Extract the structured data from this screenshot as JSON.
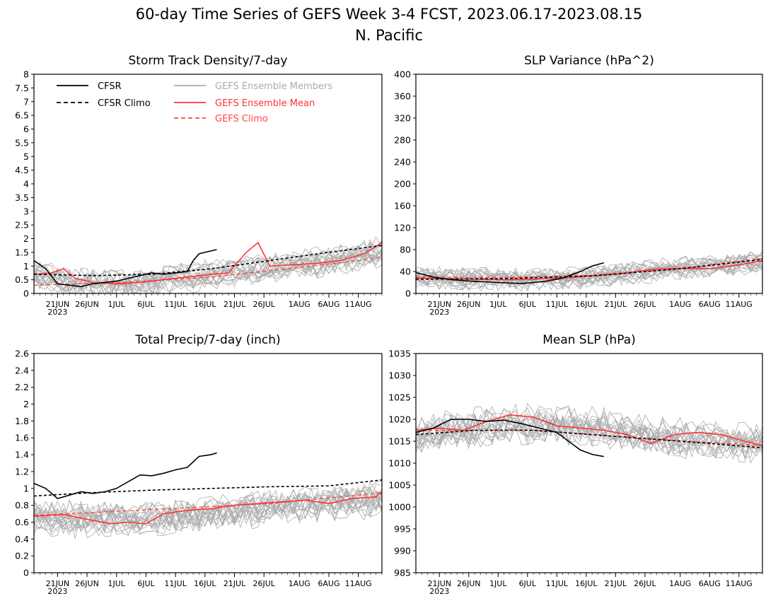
{
  "figure": {
    "title_line1": "60-day Time Series of GEFS Week 3-4 FCST, 2023.06.17-2023.08.15",
    "title_line2": "N. Pacific"
  },
  "colors": {
    "cfsr": "#000000",
    "members": "#aaaaaa",
    "ensemble_mean": "#ff3333",
    "gefs_climo": "#ff4444"
  },
  "legend": {
    "cfsr": "CFSR",
    "cfsr_climo": "CFSR Climo",
    "members": "GEFS Ensemble Members",
    "mean": "GEFS Ensemble Mean",
    "gefs_climo": "GEFS Climo"
  },
  "chart_data": [
    {
      "id": "storm",
      "type": "line",
      "title": "Storm Track Density/7-day",
      "x_dates": {
        "start": "2023-06-17",
        "end": "2023-08-15"
      },
      "x_ticks": [
        "21JUN",
        "26JUN",
        "1JUL",
        "6JUL",
        "11JUL",
        "16JUL",
        "21JUL",
        "26JUL",
        "1AUG",
        "6AUG",
        "11AUG"
      ],
      "x_year": "2023",
      "ylim": [
        0,
        8
      ],
      "y_ticks": [
        "0",
        "0.5",
        "1",
        "1.5",
        "2",
        "2.5",
        "3",
        "3.5",
        "4",
        "4.5",
        "5",
        "5.5",
        "6",
        "6.5",
        "7",
        "7.5",
        "8"
      ],
      "series": [
        {
          "name": "CFSR",
          "x_day": [
            0,
            2,
            4,
            6,
            8,
            10,
            12,
            14,
            16,
            18,
            20,
            22,
            24,
            26,
            27,
            28,
            29,
            30,
            31
          ],
          "values": [
            1.2,
            0.9,
            0.35,
            0.3,
            0.25,
            0.35,
            0.4,
            0.45,
            0.55,
            0.65,
            0.75,
            0.7,
            0.75,
            0.8,
            1.2,
            1.45,
            1.5,
            1.55,
            1.6
          ]
        },
        {
          "name": "CFSR Climo",
          "x_day": [
            0,
            10,
            20,
            30,
            40,
            50,
            59
          ],
          "values": [
            0.7,
            0.65,
            0.7,
            0.9,
            1.2,
            1.5,
            1.75
          ]
        },
        {
          "name": "GEFS Ensemble Mean",
          "x_day": [
            0,
            3,
            5,
            7,
            10,
            14,
            18,
            22,
            26,
            30,
            33,
            36,
            38,
            40,
            44,
            48,
            52,
            56,
            59
          ],
          "values": [
            0.7,
            0.75,
            0.9,
            0.55,
            0.4,
            0.35,
            0.4,
            0.5,
            0.6,
            0.7,
            0.75,
            1.5,
            1.85,
            1.0,
            1.05,
            1.1,
            1.2,
            1.45,
            1.85
          ]
        },
        {
          "name": "GEFS Climo",
          "x_day": [
            0,
            15,
            30,
            45,
            59
          ],
          "values": [
            0.3,
            0.4,
            0.6,
            0.95,
            1.3
          ]
        }
      ],
      "members_mean": [
        0.65,
        0.4,
        0.35,
        0.55,
        0.75,
        0.95,
        1.15,
        1.35,
        1.55
      ],
      "members_day": [
        0,
        8,
        16,
        24,
        32,
        40,
        48,
        54,
        59
      ],
      "members_spread": 0.55
    },
    {
      "id": "slpvar",
      "type": "line",
      "title": "SLP Variance (hPa^2)",
      "x_dates": {
        "start": "2023-06-17",
        "end": "2023-08-15"
      },
      "x_ticks": [
        "21JUN",
        "26JUN",
        "1JUL",
        "6JUL",
        "11JUL",
        "16JUL",
        "21JUL",
        "26JUL",
        "1AUG",
        "6AUG",
        "11AUG"
      ],
      "x_year": "2023",
      "ylim": [
        0,
        400
      ],
      "y_ticks": [
        "0",
        "40",
        "80",
        "120",
        "160",
        "200",
        "240",
        "280",
        "320",
        "360",
        "400"
      ],
      "series": [
        {
          "name": "CFSR",
          "x_day": [
            0,
            3,
            6,
            10,
            14,
            18,
            22,
            25,
            28,
            30,
            32
          ],
          "values": [
            38,
            30,
            25,
            22,
            20,
            18,
            22,
            28,
            40,
            50,
            56
          ]
        },
        {
          "name": "CFSR Climo",
          "x_day": [
            0,
            15,
            30,
            45,
            59
          ],
          "values": [
            26,
            27,
            32,
            45,
            62
          ]
        },
        {
          "name": "GEFS Ensemble Mean",
          "x_day": [
            0,
            5,
            10,
            15,
            20,
            25,
            30,
            35,
            40,
            45,
            50,
            55,
            59
          ],
          "values": [
            28,
            27,
            26,
            25,
            26,
            28,
            32,
            36,
            44,
            46,
            45,
            52,
            60
          ]
        },
        {
          "name": "GEFS Climo",
          "x_day": [
            0,
            15,
            30,
            45,
            59
          ],
          "values": [
            30,
            29,
            33,
            46,
            64
          ]
        }
      ],
      "members_mean": [
        28,
        26,
        24,
        26,
        32,
        40,
        48,
        52,
        56
      ],
      "members_day": [
        0,
        8,
        16,
        24,
        32,
        40,
        48,
        54,
        59
      ],
      "members_spread": 22
    },
    {
      "id": "precip",
      "type": "line",
      "title": "Total Precip/7-day (inch)",
      "x_dates": {
        "start": "2023-06-17",
        "end": "2023-08-15"
      },
      "x_ticks": [
        "21JUN",
        "26JUN",
        "1JUL",
        "6JUL",
        "11JUL",
        "16JUL",
        "21JUL",
        "26JUL",
        "1AUG",
        "6AUG",
        "11AUG"
      ],
      "x_year": "2023",
      "ylim": [
        0,
        2.6
      ],
      "y_ticks": [
        "0",
        "0.2",
        "0.4",
        "0.6",
        "0.8",
        "1",
        "1.2",
        "1.4",
        "1.6",
        "1.8",
        "2",
        "2.2",
        "2.4",
        "2.6"
      ],
      "series": [
        {
          "name": "CFSR",
          "x_day": [
            0,
            2,
            4,
            6,
            8,
            10,
            12,
            14,
            16,
            18,
            20,
            22,
            24,
            26,
            28,
            30,
            31
          ],
          "values": [
            1.06,
            1.0,
            0.88,
            0.92,
            0.96,
            0.94,
            0.96,
            1.0,
            1.08,
            1.16,
            1.15,
            1.18,
            1.22,
            1.25,
            1.38,
            1.4,
            1.42
          ]
        },
        {
          "name": "CFSR Climo",
          "x_day": [
            0,
            10,
            20,
            30,
            40,
            50,
            59
          ],
          "values": [
            0.91,
            0.95,
            0.98,
            1.0,
            1.02,
            1.03,
            1.1
          ]
        },
        {
          "name": "GEFS Ensemble Mean",
          "x_day": [
            0,
            5,
            10,
            13,
            16,
            19,
            22,
            26,
            30,
            34,
            38,
            42,
            46,
            50,
            54,
            58,
            59
          ],
          "values": [
            0.67,
            0.69,
            0.62,
            0.58,
            0.6,
            0.58,
            0.7,
            0.74,
            0.76,
            0.8,
            0.82,
            0.84,
            0.86,
            0.82,
            0.88,
            0.9,
            0.96
          ]
        },
        {
          "name": "GEFS Climo",
          "x_day": [
            0,
            20,
            40,
            59
          ],
          "values": [
            0.68,
            0.75,
            0.82,
            0.95
          ]
        }
      ],
      "members_mean": [
        0.65,
        0.65,
        0.63,
        0.66,
        0.72,
        0.78,
        0.82,
        0.85,
        0.88
      ],
      "members_day": [
        0,
        8,
        16,
        24,
        32,
        40,
        48,
        54,
        59
      ],
      "members_spread": 0.22
    },
    {
      "id": "mslp",
      "type": "line",
      "title": "Mean SLP (hPa)",
      "x_dates": {
        "start": "2023-06-17",
        "end": "2023-08-15"
      },
      "x_ticks": [
        "21JUN",
        "26JUN",
        "1JUL",
        "6JUL",
        "11JUL",
        "16JUL",
        "21JUL",
        "26JUL",
        "1AUG",
        "6AUG",
        "11AUG"
      ],
      "x_year": "2023",
      "ylim": [
        985,
        1035
      ],
      "y_ticks": [
        "985",
        "990",
        "995",
        "1000",
        "1005",
        "1010",
        "1015",
        "1020",
        "1025",
        "1030",
        "1035"
      ],
      "series": [
        {
          "name": "CFSR",
          "x_day": [
            0,
            3,
            6,
            9,
            12,
            15,
            18,
            21,
            24,
            26,
            28,
            30,
            32
          ],
          "values": [
            1017,
            1018,
            1020,
            1020,
            1019.5,
            1019.8,
            1019,
            1018,
            1017,
            1015,
            1013,
            1012,
            1011.5
          ]
        },
        {
          "name": "CFSR Climo",
          "x_day": [
            0,
            10,
            20,
            30,
            40,
            50,
            59
          ],
          "values": [
            1016.5,
            1017.5,
            1017.5,
            1016.5,
            1015.5,
            1014.5,
            1013.5
          ]
        },
        {
          "name": "GEFS Ensemble Mean",
          "x_day": [
            0,
            4,
            8,
            12,
            16,
            20,
            24,
            28,
            32,
            36,
            40,
            44,
            48,
            52,
            56,
            59
          ],
          "values": [
            1017.5,
            1018,
            1017.5,
            1019.5,
            1021,
            1020.5,
            1018.5,
            1018,
            1017.5,
            1016.5,
            1014.5,
            1016.5,
            1017,
            1016.5,
            1015,
            1014
          ]
        },
        {
          "name": "GEFS Climo",
          "x_day": [
            0,
            20,
            40,
            59
          ],
          "values": [
            1017.5,
            1017.5,
            1015.5,
            1014
          ]
        }
      ],
      "members_mean": [
        1017,
        1018,
        1019,
        1019,
        1018,
        1016.5,
        1015.5,
        1015,
        1014.5
      ],
      "members_day": [
        0,
        8,
        16,
        24,
        32,
        40,
        48,
        54,
        59
      ],
      "members_spread": 4.5
    }
  ]
}
